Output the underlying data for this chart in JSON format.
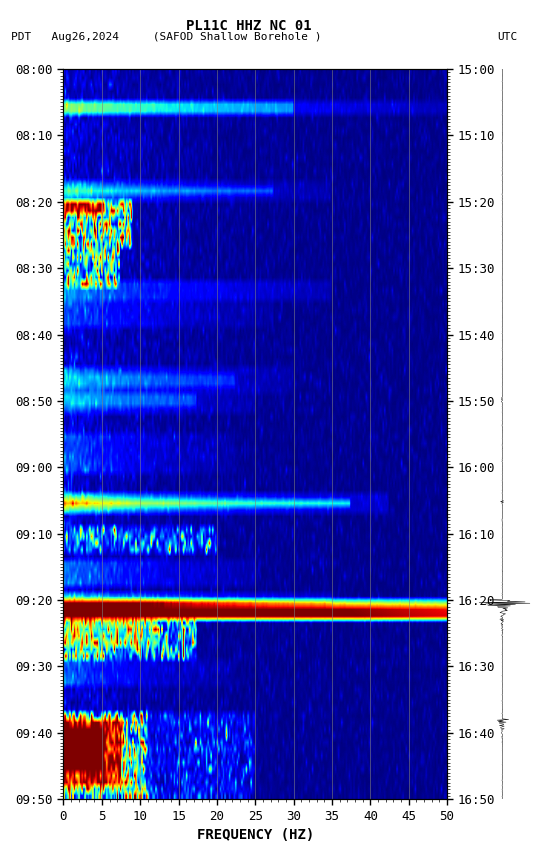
{
  "title_line1": "PL11C HHZ NC 01",
  "title_line2_left": "PDT   Aug26,2024     (SAFOD Shallow Borehole )",
  "title_line2_right": "UTC",
  "xlabel": "FREQUENCY (HZ)",
  "freq_min": 0,
  "freq_max": 50,
  "ytick_labels_left": [
    "08:00",
    "08:10",
    "08:20",
    "08:30",
    "08:40",
    "08:50",
    "09:00",
    "09:10",
    "09:20",
    "09:30",
    "09:40",
    "09:50"
  ],
  "ytick_labels_right": [
    "15:00",
    "15:10",
    "15:20",
    "15:30",
    "15:40",
    "15:50",
    "16:00",
    "16:10",
    "16:20",
    "16:30",
    "16:40",
    "16:50"
  ],
  "xtick_positions": [
    0,
    5,
    10,
    15,
    20,
    25,
    30,
    35,
    40,
    45,
    50
  ],
  "xtick_labels": [
    "0",
    "5",
    "10",
    "15",
    "20",
    "25",
    "30",
    "35",
    "40",
    "45",
    "50"
  ],
  "vertical_lines_freq": [
    5,
    10,
    15,
    20,
    25,
    30,
    35,
    40,
    45
  ],
  "background_color": "#ffffff",
  "n_time": 110,
  "n_freq": 250,
  "seed": 42,
  "font_size": 9,
  "colormap": "jet",
  "vmin": 0,
  "vmax": 5
}
